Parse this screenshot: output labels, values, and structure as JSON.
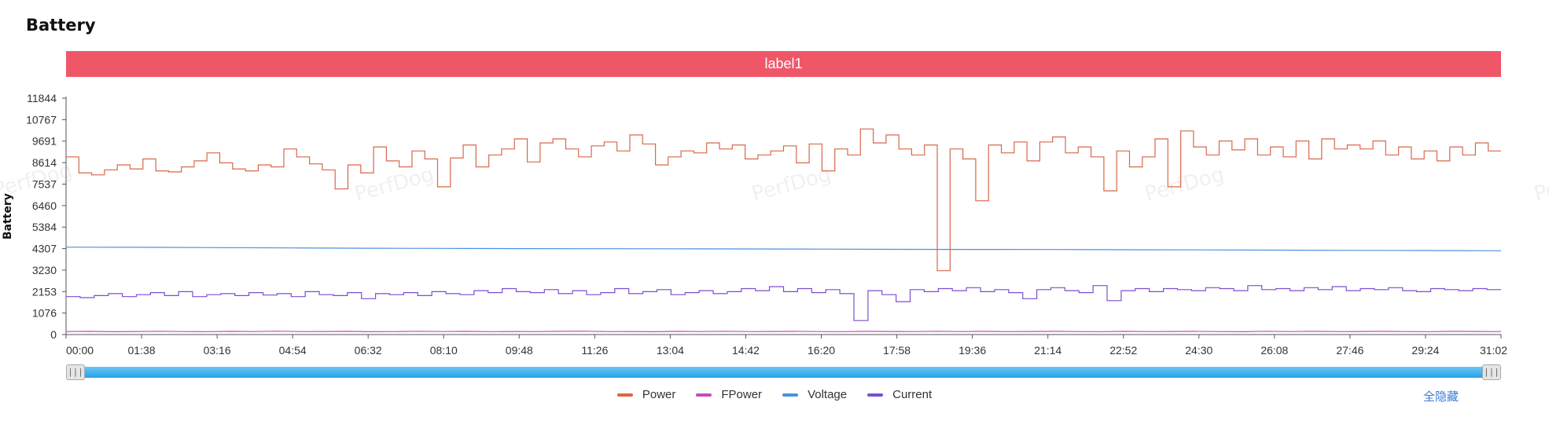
{
  "page": {
    "title": "Battery",
    "banner_label": "label1",
    "watermark": "PerfDog"
  },
  "colors": {
    "banner": "#ef5769",
    "slider": "#21a2e6",
    "link": "#3a7bd5"
  },
  "legend": {
    "items": [
      {
        "name": "Power",
        "color": "#d9674a"
      },
      {
        "name": "FPower",
        "color": "#c44cb4"
      },
      {
        "name": "Voltage",
        "color": "#4a90e2"
      },
      {
        "name": "Current",
        "color": "#7b4fd0"
      }
    ],
    "hide_all_label": "全隐藏"
  },
  "chart_data": {
    "type": "line",
    "ylabel": "Battery",
    "ylim": [
      0,
      11844
    ],
    "yticks": [
      "11844",
      "10767",
      "9691",
      "8614",
      "7537",
      "6460",
      "5384",
      "4307",
      "3230",
      "2153",
      "1076",
      "0"
    ],
    "xticks": [
      "00:00",
      "01:38",
      "03:16",
      "04:54",
      "06:32",
      "08:10",
      "09:48",
      "11:26",
      "13:04",
      "14:42",
      "16:20",
      "17:58",
      "19:36",
      "21:14",
      "22:52",
      "24:30",
      "26:08",
      "27:46",
      "29:24",
      "31:02"
    ],
    "x_range_seconds": [
      0,
      1862
    ],
    "grid": false,
    "series": [
      {
        "name": "Power",
        "color": "#d9674a",
        "step": true,
        "values": [
          8900,
          8100,
          8000,
          8250,
          8500,
          8300,
          8800,
          8200,
          8150,
          8400,
          8700,
          9100,
          8600,
          8300,
          8200,
          8500,
          8400,
          9300,
          8900,
          8550,
          8250,
          7300,
          8500,
          8100,
          9400,
          8700,
          8400,
          9200,
          8800,
          7400,
          8850,
          9500,
          8400,
          9000,
          9300,
          9800,
          8650,
          9600,
          9800,
          9300,
          8900,
          9450,
          9650,
          9200,
          10000,
          9550,
          8500,
          8900,
          9200,
          9100,
          9600,
          9300,
          9500,
          8800,
          9000,
          9200,
          9450,
          8600,
          9550,
          8200,
          9300,
          9000,
          10300,
          9600,
          10000,
          9300,
          9000,
          9500,
          3200,
          9300,
          8800,
          6700,
          9500,
          9100,
          9650,
          8700,
          9650,
          9900,
          9100,
          9400,
          8900,
          7200,
          9200,
          8400,
          8900,
          9800,
          7400,
          10200,
          9400,
          9000,
          9700,
          9250,
          9800,
          9000,
          9400,
          8900,
          9700,
          8800,
          9800,
          9300,
          9500,
          9300,
          9700,
          9000,
          9400,
          8800,
          9200,
          8700,
          9400,
          9000,
          9600,
          9200
        ]
      },
      {
        "name": "FPower",
        "color": "#c44cb4",
        "values": [
          150,
          160,
          140,
          155,
          165,
          150,
          145,
          160,
          150,
          170,
          150,
          155,
          160,
          140,
          150,
          165,
          150,
          160,
          145,
          155,
          150,
          160,
          170,
          150,
          155,
          140,
          160,
          150,
          165,
          150,
          155,
          160,
          150,
          145,
          160,
          155,
          150,
          165,
          150,
          160,
          150,
          155,
          160,
          150,
          145,
          160,
          150,
          155,
          160,
          150,
          140,
          165,
          150,
          160,
          150,
          155,
          160,
          150,
          145,
          160,
          155,
          150
        ]
      },
      {
        "name": "Voltage",
        "color": "#4a90e2",
        "values": [
          4380,
          4370,
          4355,
          4340,
          4325,
          4315,
          4305,
          4300,
          4295,
          4290,
          4280,
          4270,
          4265,
          4260,
          4250,
          4240,
          4230,
          4220,
          4210,
          4200
        ]
      },
      {
        "name": "Current",
        "color": "#7b4fd0",
        "step": true,
        "values": [
          1900,
          1850,
          1950,
          2050,
          1900,
          2000,
          2100,
          1950,
          2150,
          1900,
          2000,
          2050,
          1950,
          2100,
          1980,
          2050,
          1900,
          2150,
          2000,
          1950,
          2100,
          1800,
          2050,
          2000,
          2100,
          1950,
          2150,
          2050,
          2000,
          2200,
          2100,
          2300,
          2150,
          2100,
          2250,
          2050,
          2200,
          2000,
          2100,
          2300,
          2050,
          2150,
          2250,
          2000,
          2100,
          2200,
          2050,
          2150,
          2300,
          2200,
          2400,
          2150,
          2300,
          2100,
          2250,
          2050,
          700,
          2200,
          2000,
          1650,
          2250,
          2150,
          2300,
          2200,
          2350,
          2150,
          2250,
          2100,
          1800,
          2250,
          2350,
          2200,
          2100,
          2450,
          1700,
          2200,
          2300,
          2150,
          2300,
          2250,
          2200,
          2350,
          2300,
          2200,
          2450,
          2250,
          2300,
          2200,
          2350,
          2250,
          2400,
          2200,
          2300,
          2250,
          2350,
          2200,
          2150,
          2300,
          2250,
          2200,
          2300,
          2250
        ]
      }
    ]
  }
}
